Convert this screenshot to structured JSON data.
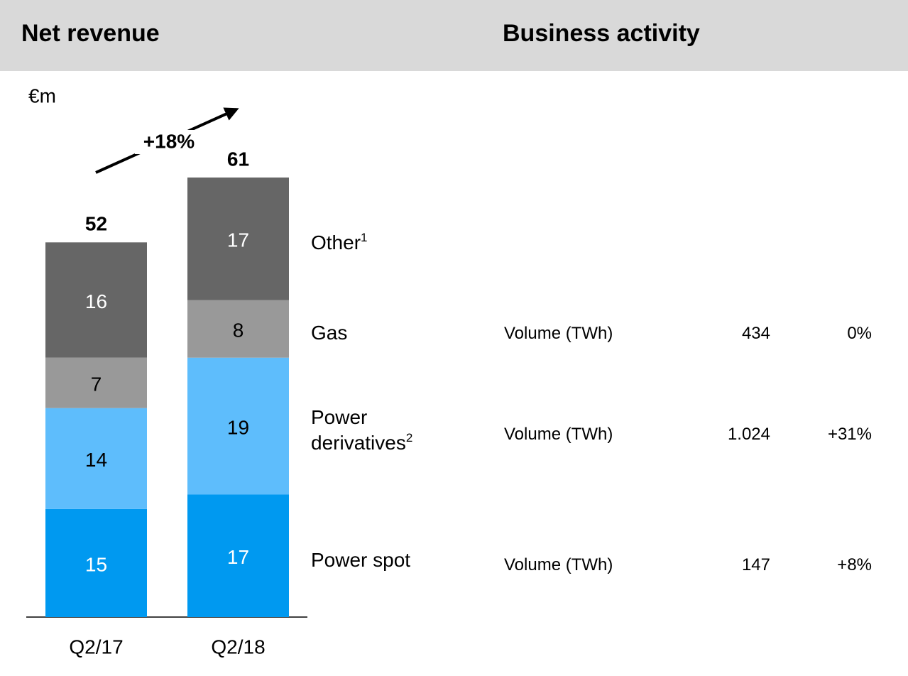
{
  "header": {
    "left": "Net revenue",
    "right": "Business activity"
  },
  "chart_data": {
    "type": "stacked_bar",
    "unit": "€m",
    "categories": [
      "Q2/17",
      "Q2/18"
    ],
    "series": [
      {
        "name": "Power spot",
        "color": "#0099f0",
        "label_color": "#ffffff",
        "values": [
          15,
          17
        ]
      },
      {
        "name": "Power derivatives",
        "footnote": "2",
        "color": "#5ebdfc",
        "label_color": "#000000",
        "values": [
          14,
          19
        ]
      },
      {
        "name": "Gas",
        "color": "#999999",
        "label_color": "#000000",
        "values": [
          7,
          8
        ]
      },
      {
        "name": "Other",
        "footnote": "1",
        "color": "#666666",
        "label_color": "#ffffff",
        "values": [
          16,
          17
        ]
      }
    ],
    "totals": [
      52,
      61
    ],
    "annotation": "+18%"
  },
  "business_activity": [
    {
      "label": "Volume (TWh)",
      "value": 434,
      "change": "0%"
    },
    {
      "label": "Volume (TWh)",
      "value": "1.024",
      "change": "+31%"
    },
    {
      "label": "Volume (TWh)",
      "value": 147,
      "change": "+8%"
    }
  ]
}
